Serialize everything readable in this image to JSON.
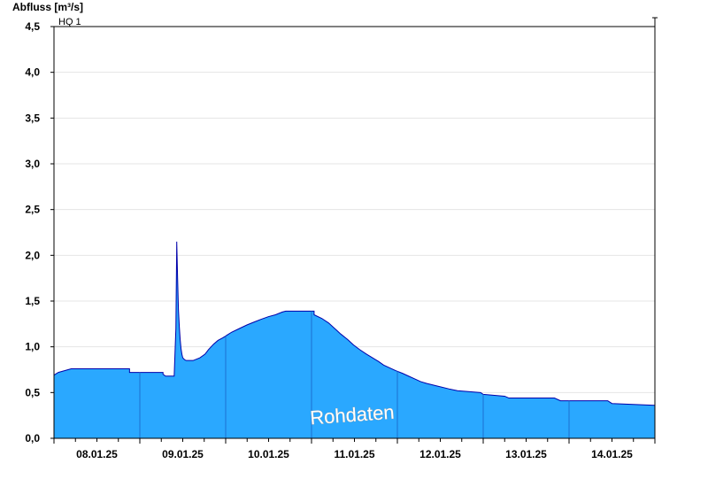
{
  "chart_data": {
    "type": "area",
    "ylabel": "Abfluss [m³/s]",
    "ylim": [
      0,
      4.5
    ],
    "yticks": [
      "0,0",
      "0,5",
      "1,0",
      "1,5",
      "2,0",
      "2,5",
      "3,0",
      "3,5",
      "4,0",
      "4,5"
    ],
    "ytick_values": [
      0,
      0.5,
      1.0,
      1.5,
      2.0,
      2.5,
      3.0,
      3.5,
      4.0,
      4.5
    ],
    "xlim": [
      0,
      7
    ],
    "xtick_labels": [
      "08.01.25",
      "09.01.25",
      "10.01.25",
      "11.01.25",
      "12.01.25",
      "13.01.25",
      "14.01.25"
    ],
    "xtick_positions": [
      0.5,
      1.5,
      2.5,
      3.5,
      4.5,
      5.5,
      6.5
    ],
    "day_boundaries": [
      1,
      2,
      3,
      4,
      5,
      6
    ],
    "hq_label": "HQ 1",
    "hq_value": 4.5,
    "annotation": "Rohdaten",
    "fill_color": "#2aa8ff",
    "line_color": "#0000aa",
    "grid": true,
    "series": [
      {
        "x": [
          0,
          0.05,
          0.2,
          0.88,
          0.88,
          1.27,
          1.27,
          1.3,
          1.4,
          1.42,
          1.43,
          1.44,
          1.45,
          1.46,
          1.47,
          1.48,
          1.49,
          1.5,
          1.52,
          1.54,
          1.56,
          1.58,
          1.62,
          1.7,
          1.76,
          1.8,
          1.86,
          1.91,
          1.97,
          2.02,
          2.07,
          2.16,
          2.25,
          2.33,
          2.41,
          2.5,
          2.58,
          2.66,
          2.7,
          3.03,
          3.03,
          3.12,
          3.2,
          3.27,
          3.34,
          3.42,
          3.49,
          3.56,
          3.64,
          3.71,
          3.78,
          3.84,
          3.91,
          3.98,
          4.06,
          4.13,
          4.2,
          4.27,
          4.34,
          4.47,
          4.6,
          4.7,
          4.97,
          5.0,
          5.25,
          5.3,
          5.83,
          5.9,
          6.45,
          6.5,
          7.0
        ],
        "y": [
          0.69,
          0.72,
          0.76,
          0.76,
          0.72,
          0.72,
          0.7,
          0.68,
          0.68,
          1.2,
          2.15,
          1.75,
          1.4,
          1.22,
          1.08,
          0.98,
          0.92,
          0.88,
          0.86,
          0.85,
          0.85,
          0.85,
          0.85,
          0.88,
          0.92,
          0.97,
          1.03,
          1.07,
          1.1,
          1.13,
          1.16,
          1.2,
          1.24,
          1.27,
          1.3,
          1.33,
          1.35,
          1.38,
          1.39,
          1.39,
          1.35,
          1.31,
          1.26,
          1.2,
          1.14,
          1.08,
          1.02,
          0.97,
          0.92,
          0.88,
          0.84,
          0.8,
          0.77,
          0.74,
          0.71,
          0.68,
          0.65,
          0.62,
          0.6,
          0.57,
          0.54,
          0.52,
          0.5,
          0.48,
          0.46,
          0.44,
          0.44,
          0.41,
          0.41,
          0.38,
          0.36
        ]
      }
    ]
  }
}
